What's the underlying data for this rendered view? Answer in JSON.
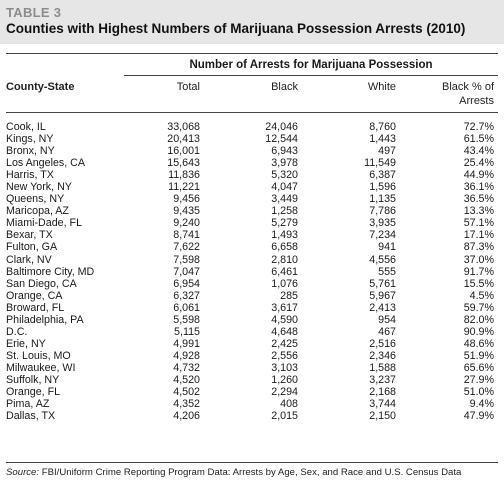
{
  "table": {
    "label": "TABLE 3",
    "title": "Counties with Highest Numbers of Marijuana Possession Arrests (2010)",
    "group_header": "Number of Arrests for Marijuana Possession",
    "columns": {
      "county": "County-State",
      "total": "Total",
      "black": "Black",
      "white": "White",
      "pct_line1": "Black % of",
      "pct_line2": "Arrests"
    },
    "rows": [
      {
        "county": "Cook, IL",
        "total": "33,068",
        "black": "24,046",
        "white": "8,760",
        "pct": "72.7%"
      },
      {
        "county": "Kings, NY",
        "total": "20,413",
        "black": "12,544",
        "white": "1,443",
        "pct": "61.5%"
      },
      {
        "county": "Bronx, NY",
        "total": "16,001",
        "black": "6,943",
        "white": "497",
        "pct": "43.4%"
      },
      {
        "county": "Los Angeles, CA",
        "total": "15,643",
        "black": "3,978",
        "white": "11,549",
        "pct": "25.4%"
      },
      {
        "county": "Harris, TX",
        "total": "11,836",
        "black": "5,320",
        "white": "6,387",
        "pct": "44.9%"
      },
      {
        "county": "New York, NY",
        "total": "11,221",
        "black": "4,047",
        "white": "1,596",
        "pct": "36.1%"
      },
      {
        "county": "Queens, NY",
        "total": "9,456",
        "black": "3,449",
        "white": "1,135",
        "pct": "36.5%"
      },
      {
        "county": "Maricopa, AZ",
        "total": "9,435",
        "black": "1,258",
        "white": "7,786",
        "pct": "13.3%"
      },
      {
        "county": "Miami-Dade, FL",
        "total": "9,240",
        "black": "5,279",
        "white": "3,935",
        "pct": "57.1%"
      },
      {
        "county": "Bexar, TX",
        "total": "8,741",
        "black": "1,493",
        "white": "7,234",
        "pct": "17.1%"
      },
      {
        "county": "Fulton, GA",
        "total": "7,622",
        "black": "6,658",
        "white": "941",
        "pct": "87.3%"
      },
      {
        "county": "Clark, NV",
        "total": "7,598",
        "black": "2,810",
        "white": "4,556",
        "pct": "37.0%"
      },
      {
        "county": "Baltimore City, MD",
        "total": "7,047",
        "black": "6,461",
        "white": "555",
        "pct": "91.7%"
      },
      {
        "county": "San Diego, CA",
        "total": "6,954",
        "black": "1,076",
        "white": "5,761",
        "pct": "15.5%"
      },
      {
        "county": "Orange, CA",
        "total": "6,327",
        "black": "285",
        "white": "5,967",
        "pct": "4.5%"
      },
      {
        "county": "Broward, FL",
        "total": "6,061",
        "black": "3,617",
        "white": "2,413",
        "pct": "59.7%"
      },
      {
        "county": "Philadelphia, PA",
        "total": "5,598",
        "black": "4,590",
        "white": "954",
        "pct": "82.0%"
      },
      {
        "county": "D.C.",
        "total": "5,115",
        "black": "4,648",
        "white": "467",
        "pct": "90.9%"
      },
      {
        "county": "Erie, NY",
        "total": "4,991",
        "black": "2,425",
        "white": "2,516",
        "pct": "48.6%"
      },
      {
        "county": "St. Louis, MO",
        "total": "4,928",
        "black": "2,556",
        "white": "2,346",
        "pct": "51.9%"
      },
      {
        "county": "Milwaukee, WI",
        "total": "4,732",
        "black": "3,103",
        "white": "1,588",
        "pct": "65.6%"
      },
      {
        "county": "Suffolk, NY",
        "total": "4,520",
        "black": "1,260",
        "white": "3,237",
        "pct": "27.9%"
      },
      {
        "county": "Orange, FL",
        "total": "4,502",
        "black": "2,294",
        "white": "2,168",
        "pct": "51.0%"
      },
      {
        "county": "Pima, AZ",
        "total": "4,352",
        "black": "408",
        "white": "3,744",
        "pct": "9.4%"
      },
      {
        "county": "Dallas, TX",
        "total": "4,206",
        "black": "2,015",
        "white": "2,150",
        "pct": "47.9%"
      }
    ],
    "source_label": "Source:",
    "source_text": " FBI/Uniform Crime Reporting Program Data: Arrests by Age, Sex, and Race and U.S. Census Data"
  },
  "colors": {
    "header_band": "#e6e6e6",
    "label_gray": "#8c8c8c",
    "rule": "#444444"
  }
}
